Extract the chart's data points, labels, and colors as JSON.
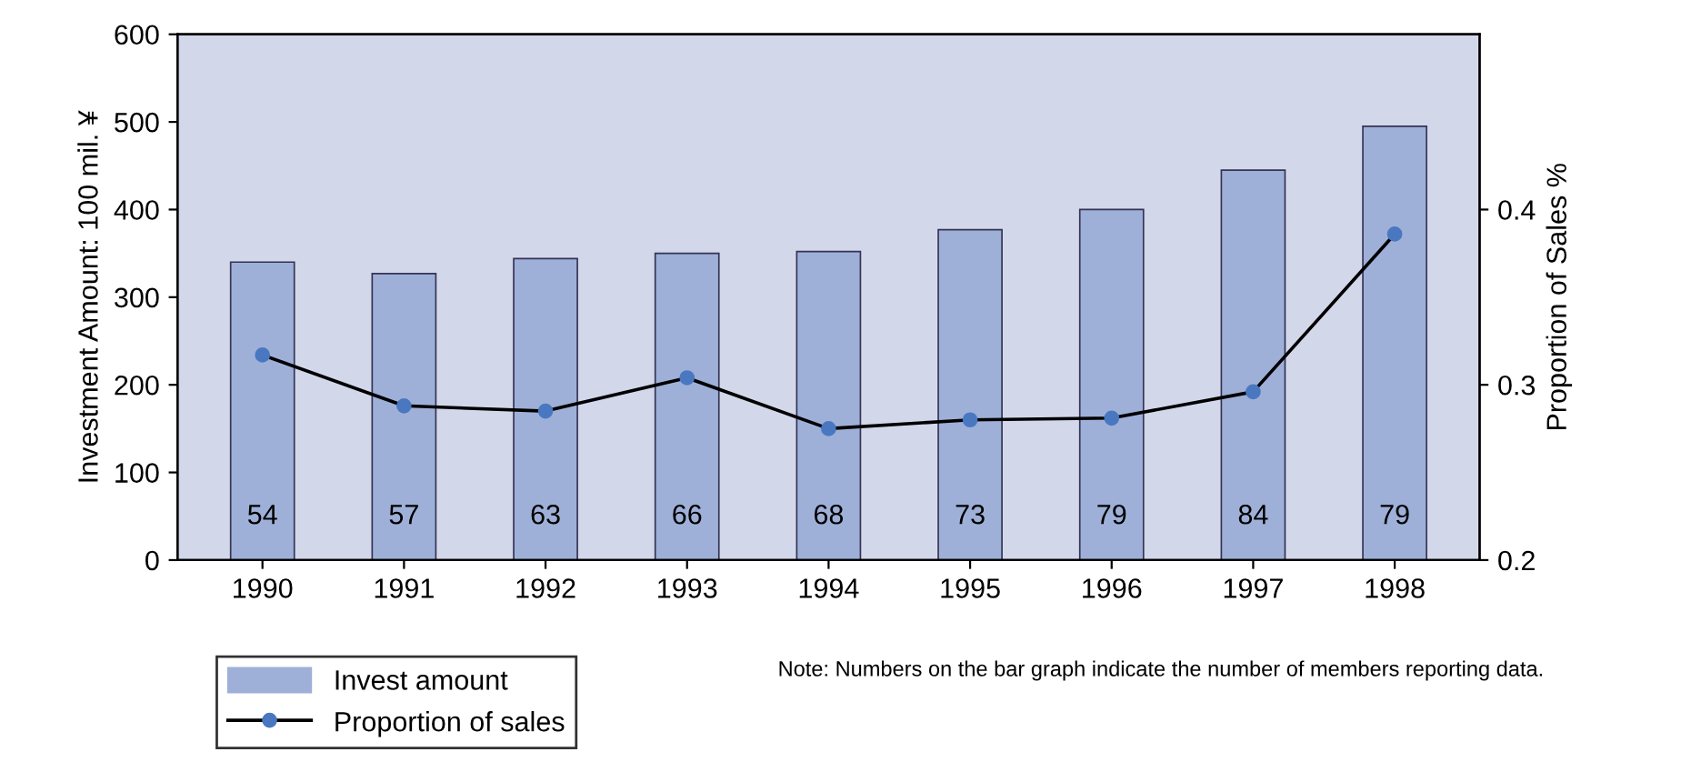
{
  "chart_data": {
    "type": "bar",
    "categories": [
      "1990",
      "1991",
      "1992",
      "1993",
      "1994",
      "1995",
      "1996",
      "1997",
      "1998"
    ],
    "series": [
      {
        "name": "Invest amount",
        "color": "#9fb0d8",
        "values": [
          340,
          327,
          344,
          350,
          352,
          377,
          400,
          445,
          495
        ]
      },
      {
        "name": "Proportion of sales",
        "type": "line",
        "axis": "y2",
        "color": "#4a78c0",
        "values": [
          0.317,
          0.288,
          0.285,
          0.304,
          0.275,
          0.28,
          0.281,
          0.296,
          0.386
        ]
      }
    ],
    "ylabel": "Investment Amount: 100 mil. ¥",
    "y2label": "Proportion of Sales %",
    "ylim": [
      0,
      600
    ],
    "yticks": [
      0,
      100,
      200,
      300,
      400,
      500,
      600
    ],
    "y2lim": [
      0.2,
      0.5
    ],
    "y2ticks": [
      0.2,
      0.3,
      0.4
    ],
    "marker": "circle",
    "line_style": "solid",
    "grid": false,
    "legend": "bottom left",
    "annotations": [
      "54",
      "57",
      "63",
      "66",
      "68",
      "73",
      "79",
      "84",
      "79",
      "Note: Numbers on the bar graph indicate the number of members reporting data."
    ]
  }
}
